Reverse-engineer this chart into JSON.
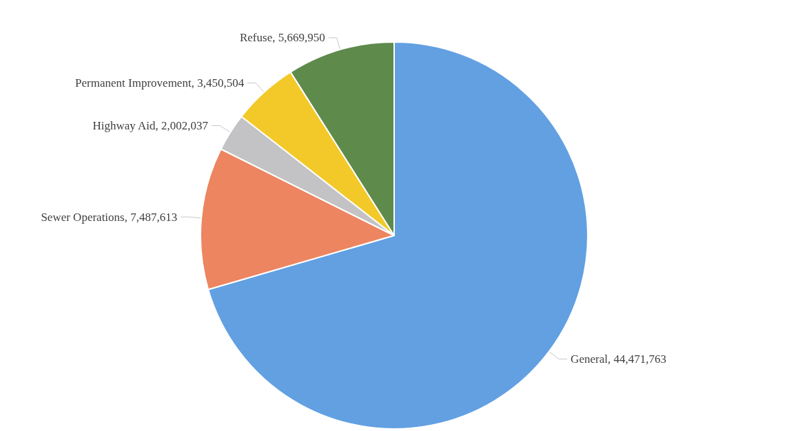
{
  "chart_data": {
    "type": "pie",
    "categories": [
      "General",
      "Sewer Operations",
      "Highway Aid",
      "Permanent Improvement",
      "Refuse"
    ],
    "values": [
      44471763,
      7487613,
      2002037,
      3450504,
      5669950
    ],
    "colors": [
      "#62a0e2",
      "#ec8560",
      "#c3c3c5",
      "#f2c928",
      "#5e8a4c"
    ],
    "value_labels": [
      "44,471,763",
      "7,487,613",
      "2,002,037",
      "3,450,504",
      "5,669,950"
    ],
    "legend": false
  }
}
